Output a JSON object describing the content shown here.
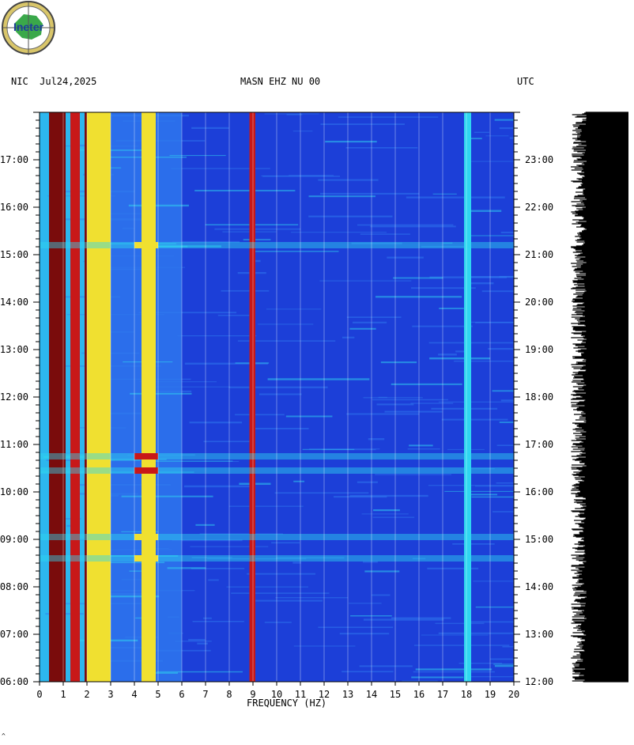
{
  "header": {
    "left": "NIC  Jul24,2025",
    "center": "MASN EHZ NU 00",
    "right": "UTC"
  },
  "logo": {
    "text": "Ineter",
    "name": "ineter-logo"
  },
  "colors": {
    "background_blue": "#1c3fd8",
    "mid_blue": "#2f7bf0",
    "cyan": "#2fd6f0",
    "yellow": "#f0e030",
    "red": "#c81818",
    "dark_red": "#7a0c0c"
  },
  "chart_data": {
    "type": "heatmap",
    "xlabel": "FREQUENCY (HZ)",
    "xlim": [
      0,
      20
    ],
    "x_ticks": [
      "0",
      "1",
      "2",
      "3",
      "4",
      "5",
      "6",
      "7",
      "8",
      "9",
      "10",
      "11",
      "12",
      "13",
      "14",
      "15",
      "16",
      "17",
      "18",
      "19",
      "20"
    ],
    "y_left_ticks": [
      "06:00",
      "07:00",
      "08:00",
      "09:00",
      "10:00",
      "11:00",
      "12:00",
      "13:00",
      "14:00",
      "15:00",
      "16:00",
      "17:00"
    ],
    "y_right_ticks": [
      "12:00",
      "13:00",
      "14:00",
      "15:00",
      "16:00",
      "17:00",
      "18:00",
      "19:00",
      "20:00",
      "21:00",
      "22:00",
      "23:00"
    ],
    "y_left_range_hours": [
      6,
      18
    ],
    "y_right_range_hours": [
      12,
      24
    ],
    "grid": true,
    "strong_bands_hz": [
      {
        "from": 0.4,
        "to": 1.1,
        "level": "dark_red"
      },
      {
        "from": 1.3,
        "to": 1.7,
        "level": "red"
      },
      {
        "from": 1.9,
        "to": 2.0,
        "level": "dark_red"
      },
      {
        "from": 2.0,
        "to": 3.0,
        "level": "yellow"
      },
      {
        "from": 4.3,
        "to": 4.9,
        "level": "yellow"
      },
      {
        "from": 8.85,
        "to": 9.1,
        "level": "red"
      },
      {
        "from": 17.9,
        "to": 18.2,
        "level": "cyan"
      }
    ],
    "bursts_hours": [
      {
        "time": 10.45,
        "level": "red"
      },
      {
        "time": 10.75,
        "level": "red"
      },
      {
        "time": 15.2,
        "level": "yellow"
      },
      {
        "time": 8.6,
        "level": "yellow"
      },
      {
        "time": 9.05,
        "level": "yellow"
      }
    ],
    "trace": {
      "description_color": "#000000"
    }
  },
  "footer": {
    "mark": "^"
  }
}
